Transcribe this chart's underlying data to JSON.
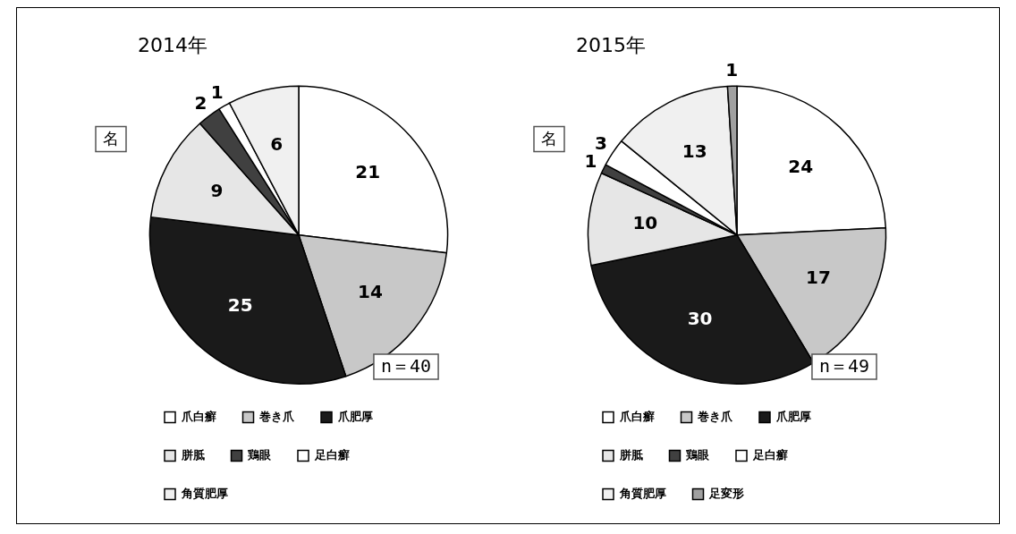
{
  "chart_data": [
    {
      "type": "pie",
      "title": "2014年",
      "categories": [
        "爪白癬",
        "巻き爪",
        "爪肥厚",
        "胼胝",
        "鶏眼",
        "足白癬",
        "角質肥厚"
      ],
      "values": [
        21,
        14,
        25,
        9,
        2,
        1,
        6
      ],
      "colors": [
        "#ffffff",
        "#c8c8c8",
        "#1a1a1a",
        "#e6e6e6",
        "#404040",
        "#ffffff",
        "#f0f0f0"
      ],
      "data_labels": true,
      "legend": "bottom",
      "annotations": [
        "名",
        "n＝40"
      ]
    },
    {
      "type": "pie",
      "title": "2015年",
      "categories": [
        "爪白癬",
        "巻き爪",
        "爪肥厚",
        "胼胝",
        "鶏眼",
        "足白癬",
        "角質肥厚",
        "足変形"
      ],
      "values": [
        24,
        17,
        30,
        10,
        1,
        3,
        13,
        1
      ],
      "colors": [
        "#ffffff",
        "#c8c8c8",
        "#1a1a1a",
        "#e6e6e6",
        "#404040",
        "#ffffff",
        "#f0f0f0",
        "#a0a0a0"
      ],
      "data_labels": true,
      "legend": "bottom",
      "annotations": [
        "名",
        "n＝49"
      ]
    }
  ]
}
